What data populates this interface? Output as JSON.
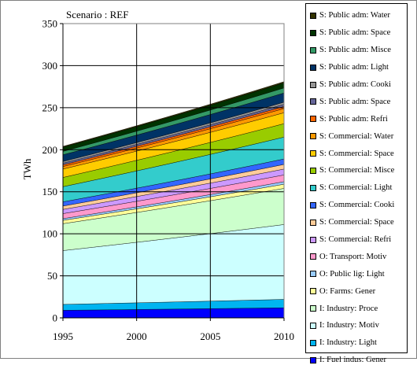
{
  "chart_data": {
    "type": "area",
    "stacked": true,
    "title": "Scenario : REF",
    "xlabel": "",
    "ylabel": "TWh",
    "x": [
      1995,
      1996,
      1997,
      1998,
      1999,
      2000,
      2001,
      2002,
      2003,
      2004,
      2005,
      2006,
      2007,
      2008,
      2009,
      2010
    ],
    "xlim": [
      1995,
      2010
    ],
    "ylim": [
      0,
      350
    ],
    "xticks": [
      1995,
      2000,
      2005,
      2010
    ],
    "yticks": [
      0,
      50,
      100,
      150,
      200,
      250,
      300,
      350
    ],
    "grid": true,
    "legend_position": "right",
    "series": [
      {
        "name": "I: Fuel indus: Gener",
        "color": "#0000FF",
        "start": 9,
        "end": 12
      },
      {
        "name": "I: Industry: Light",
        "color": "#00B4F0",
        "start": 7,
        "end": 10
      },
      {
        "name": "I: Industry: Motiv",
        "color": "#CCFFFF",
        "start": 64,
        "end": 89
      },
      {
        "name": "I: Industry: Proce",
        "color": "#CCFFCC",
        "start": 32,
        "end": 43
      },
      {
        "name": "O: Farms: Gener",
        "color": "#FFFF99",
        "start": 4,
        "end": 5
      },
      {
        "name": "O: Public lig: Light",
        "color": "#99CCFF",
        "start": 2,
        "end": 3
      },
      {
        "name": "O: Transport: Motiv",
        "color": "#FF99CC",
        "start": 6,
        "end": 8
      },
      {
        "name": "S: Commercial: Refri",
        "color": "#CC99FF",
        "start": 5,
        "end": 7
      },
      {
        "name": "S: Commercial: Space",
        "color": "#FFCC99",
        "start": 4,
        "end": 5.5
      },
      {
        "name": "S: Commercial: Cooki",
        "color": "#3366FF",
        "start": 5,
        "end": 6.5
      },
      {
        "name": "S: Commercial: Light",
        "color": "#33CCCC",
        "start": 18,
        "end": 26
      },
      {
        "name": "S: Commercial: Misce",
        "color": "#99CC00",
        "start": 11,
        "end": 16
      },
      {
        "name": "S: Commercial: Space",
        "color": "#FFCC00",
        "start": 10,
        "end": 13
      },
      {
        "name": "S: Commercial: Water",
        "color": "#FF9900",
        "start": 3,
        "end": 5
      },
      {
        "name": "S: Public adm: Refri",
        "color": "#FF6600",
        "start": 2,
        "end": 2.5
      },
      {
        "name": "S: Public adm: Space",
        "color": "#666699",
        "start": 2,
        "end": 2.5
      },
      {
        "name": "S: Public adm: Cooki",
        "color": "#969696",
        "start": 2,
        "end": 2.5
      },
      {
        "name": "S: Public adm: Light",
        "color": "#003366",
        "start": 8,
        "end": 11
      },
      {
        "name": "S: Public adm: Misce",
        "color": "#339966",
        "start": 4,
        "end": 6
      },
      {
        "name": "S: Public adm: Space",
        "color": "#003300",
        "start": 5,
        "end": 6
      },
      {
        "name": "S: Public adm: Water",
        "color": "#333300",
        "start": 1,
        "end": 1.5
      }
    ]
  }
}
